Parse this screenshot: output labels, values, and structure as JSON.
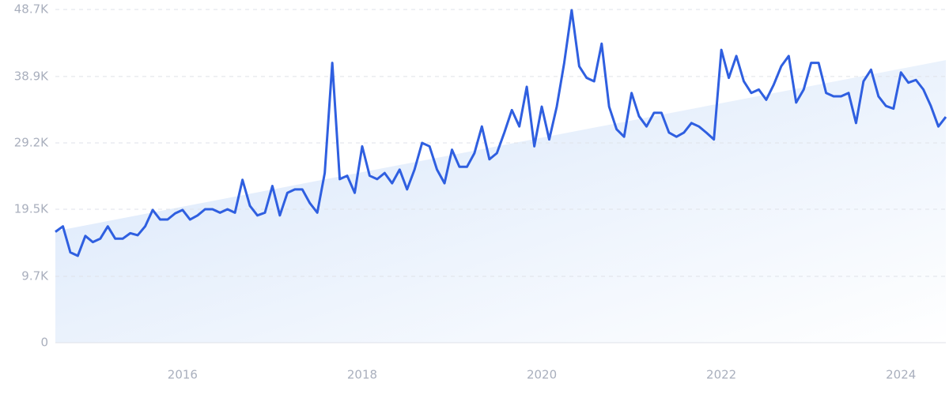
{
  "chart_data": {
    "type": "line",
    "x": [
      2014.583,
      2014.667,
      2014.75,
      2014.833,
      2014.917,
      2015,
      2015.083,
      2015.167,
      2015.25,
      2015.333,
      2015.417,
      2015.5,
      2015.583,
      2015.667,
      2015.75,
      2015.833,
      2015.917,
      2016,
      2016.083,
      2016.167,
      2016.25,
      2016.333,
      2016.417,
      2016.5,
      2016.583,
      2016.667,
      2016.75,
      2016.833,
      2016.917,
      2017,
      2017.083,
      2017.167,
      2017.25,
      2017.333,
      2017.417,
      2017.5,
      2017.583,
      2017.667,
      2017.75,
      2017.833,
      2017.917,
      2018,
      2018.083,
      2018.167,
      2018.25,
      2018.333,
      2018.417,
      2018.5,
      2018.583,
      2018.667,
      2018.75,
      2018.833,
      2018.917,
      2019,
      2019.083,
      2019.167,
      2019.25,
      2019.333,
      2019.417,
      2019.5,
      2019.583,
      2019.667,
      2019.75,
      2019.833,
      2019.917,
      2020,
      2020.083,
      2020.167,
      2020.25,
      2020.333,
      2020.417,
      2020.5,
      2020.583,
      2020.667,
      2020.75,
      2020.833,
      2020.917,
      2021,
      2021.083,
      2021.167,
      2021.25,
      2021.333,
      2021.417,
      2021.5,
      2021.583,
      2021.667,
      2021.75,
      2021.833,
      2021.917,
      2022,
      2022.083,
      2022.167,
      2022.25,
      2022.333,
      2022.417,
      2022.5,
      2022.583,
      2022.667,
      2022.75,
      2022.833,
      2022.917,
      2023,
      2023.083,
      2023.167,
      2023.25,
      2023.333,
      2023.417,
      2023.5,
      2023.583,
      2023.667,
      2023.75,
      2023.833,
      2023.917,
      2024,
      2024.083,
      2024.167,
      2024.25,
      2024.333,
      2024.417,
      2024.5
    ],
    "values": [
      16200,
      17000,
      13200,
      12700,
      15600,
      14700,
      15200,
      17000,
      15200,
      15200,
      16000,
      15700,
      17000,
      19400,
      18000,
      18000,
      18900,
      19400,
      18000,
      18600,
      19500,
      19500,
      19000,
      19500,
      19000,
      23800,
      20000,
      18600,
      19000,
      22900,
      18600,
      21900,
      22400,
      22400,
      20400,
      19000,
      24800,
      40900,
      23900,
      24400,
      21900,
      28700,
      24400,
      23900,
      24800,
      23300,
      25300,
      22400,
      25300,
      29200,
      28700,
      25300,
      23300,
      28200,
      25700,
      25700,
      27700,
      31600,
      26800,
      27700,
      30700,
      34000,
      31600,
      37400,
      28700,
      34500,
      29700,
      34500,
      40900,
      48600,
      40400,
      38700,
      38200,
      43700,
      34500,
      31200,
      30100,
      36500,
      33100,
      31600,
      33600,
      33600,
      30700,
      30100,
      30700,
      32100,
      31600,
      30700,
      29700,
      42800,
      38700,
      41900,
      38200,
      36500,
      37000,
      35500,
      37700,
      40400,
      41900,
      35100,
      37000,
      40900,
      40900,
      36500,
      36000,
      36000,
      36500,
      32100,
      38200,
      39900,
      36000,
      34600,
      34200,
      39500,
      38000,
      38400,
      37000,
      34600,
      31600,
      33000
    ],
    "color": "#2f5fe0",
    "trend": {
      "x": [
        2014.583,
        2024.5
      ],
      "values": [
        16300,
        41300
      ],
      "color": "#dce8fb"
    },
    "xlim": [
      2014.583,
      2024.5
    ],
    "xticks": [
      2016,
      2018,
      2020,
      2022,
      2024
    ],
    "ylim": [
      0,
      48700
    ],
    "yticks": [
      0,
      {
        "value": 9700,
        "label": "9.7K"
      },
      {
        "value": 19500,
        "label": "19.5K"
      },
      {
        "value": 29200,
        "label": "29.2K"
      },
      {
        "value": 38900,
        "label": "38.9K"
      },
      {
        "value": 48700,
        "label": "48.7K"
      }
    ],
    "grid": true
  }
}
